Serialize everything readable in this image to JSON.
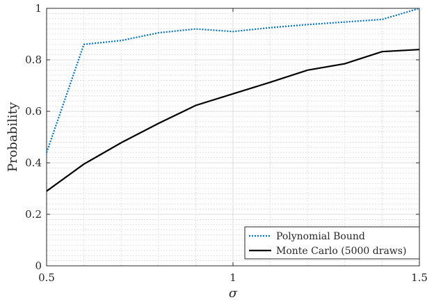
{
  "chart_data": {
    "type": "line",
    "xlabel": "σ",
    "ylabel": "Probability",
    "xlim": [
      0.5,
      1.5
    ],
    "ylim": [
      0,
      1
    ],
    "x_ticks": [
      0.5,
      1,
      1.5
    ],
    "x_tick_labels": [
      "0.5",
      "1",
      "1.5"
    ],
    "y_ticks": [
      0,
      0.2,
      0.4,
      0.6,
      0.8,
      1
    ],
    "y_tick_labels": [
      "0",
      "0.2",
      "0.4",
      "0.6",
      "0.8",
      "1"
    ],
    "grid": true,
    "minor_grid": true,
    "legend_position": "bottom-right",
    "x": [
      0.5,
      0.6,
      0.7,
      0.8,
      0.9,
      1.0,
      1.1,
      1.2,
      1.3,
      1.4,
      1.5
    ],
    "series": [
      {
        "name": "Polynomial Bound",
        "color": "#0072BD",
        "style": "dotted",
        "values": [
          0.44,
          0.86,
          0.875,
          0.905,
          0.92,
          0.91,
          0.925,
          0.937,
          0.947,
          0.957,
          1.0
        ]
      },
      {
        "name": "Monte Carlo (5000 draws)",
        "color": "#000000",
        "style": "solid",
        "values": [
          0.29,
          0.395,
          0.478,
          0.553,
          0.623,
          0.668,
          0.713,
          0.76,
          0.785,
          0.832,
          0.84
        ]
      }
    ]
  }
}
